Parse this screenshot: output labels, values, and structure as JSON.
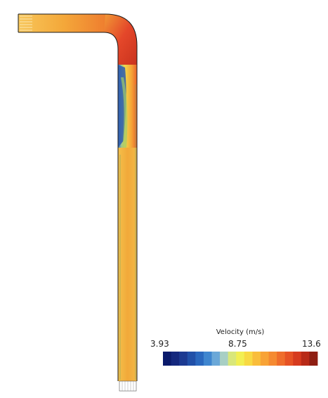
{
  "legend": {
    "title": "Velocity (m/s)",
    "min_label": "3.93",
    "mid_label": "8.75",
    "max_label": "13.6",
    "min_value": 3.93,
    "mid_value": 8.75,
    "max_value": 13.6,
    "colors": [
      "#0a1a6b",
      "#14287e",
      "#1c3a91",
      "#2150a8",
      "#2a68be",
      "#3f86cf",
      "#6ba8d8",
      "#a8cfc4",
      "#d9e77a",
      "#f2ef52",
      "#f8d943",
      "#f9bd3b",
      "#f8a336",
      "#f58a31",
      "#ef6d2b",
      "#e65224",
      "#d63a1e",
      "#b82a17",
      "#8e1e12"
    ]
  },
  "field": {
    "pipe_color": "#f2b544",
    "bend_color": "#e8452a",
    "low_color": "#2f5fb3",
    "wall_color": "#1a1a1a"
  }
}
